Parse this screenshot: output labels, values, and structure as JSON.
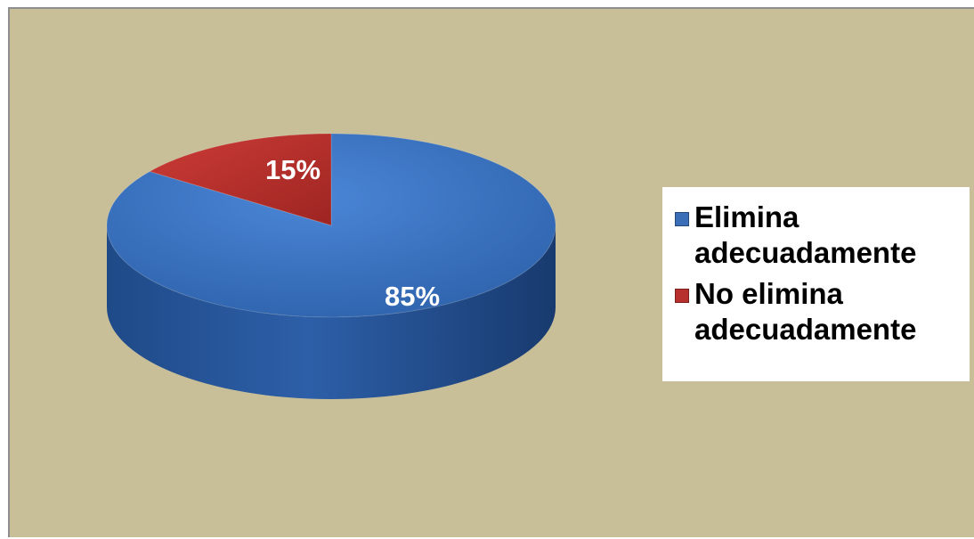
{
  "chart_data": {
    "type": "pie",
    "style": "3d",
    "slices": [
      {
        "name": "Elimina adecuadamente",
        "value": 85,
        "label": "85%",
        "color": "#3a6fb8"
      },
      {
        "name": "No elimina adecuadamente",
        "value": 15,
        "label": "15%",
        "color": "#b8302e"
      }
    ],
    "legend": {
      "position": "right"
    },
    "background_color": "#c8bf99"
  }
}
